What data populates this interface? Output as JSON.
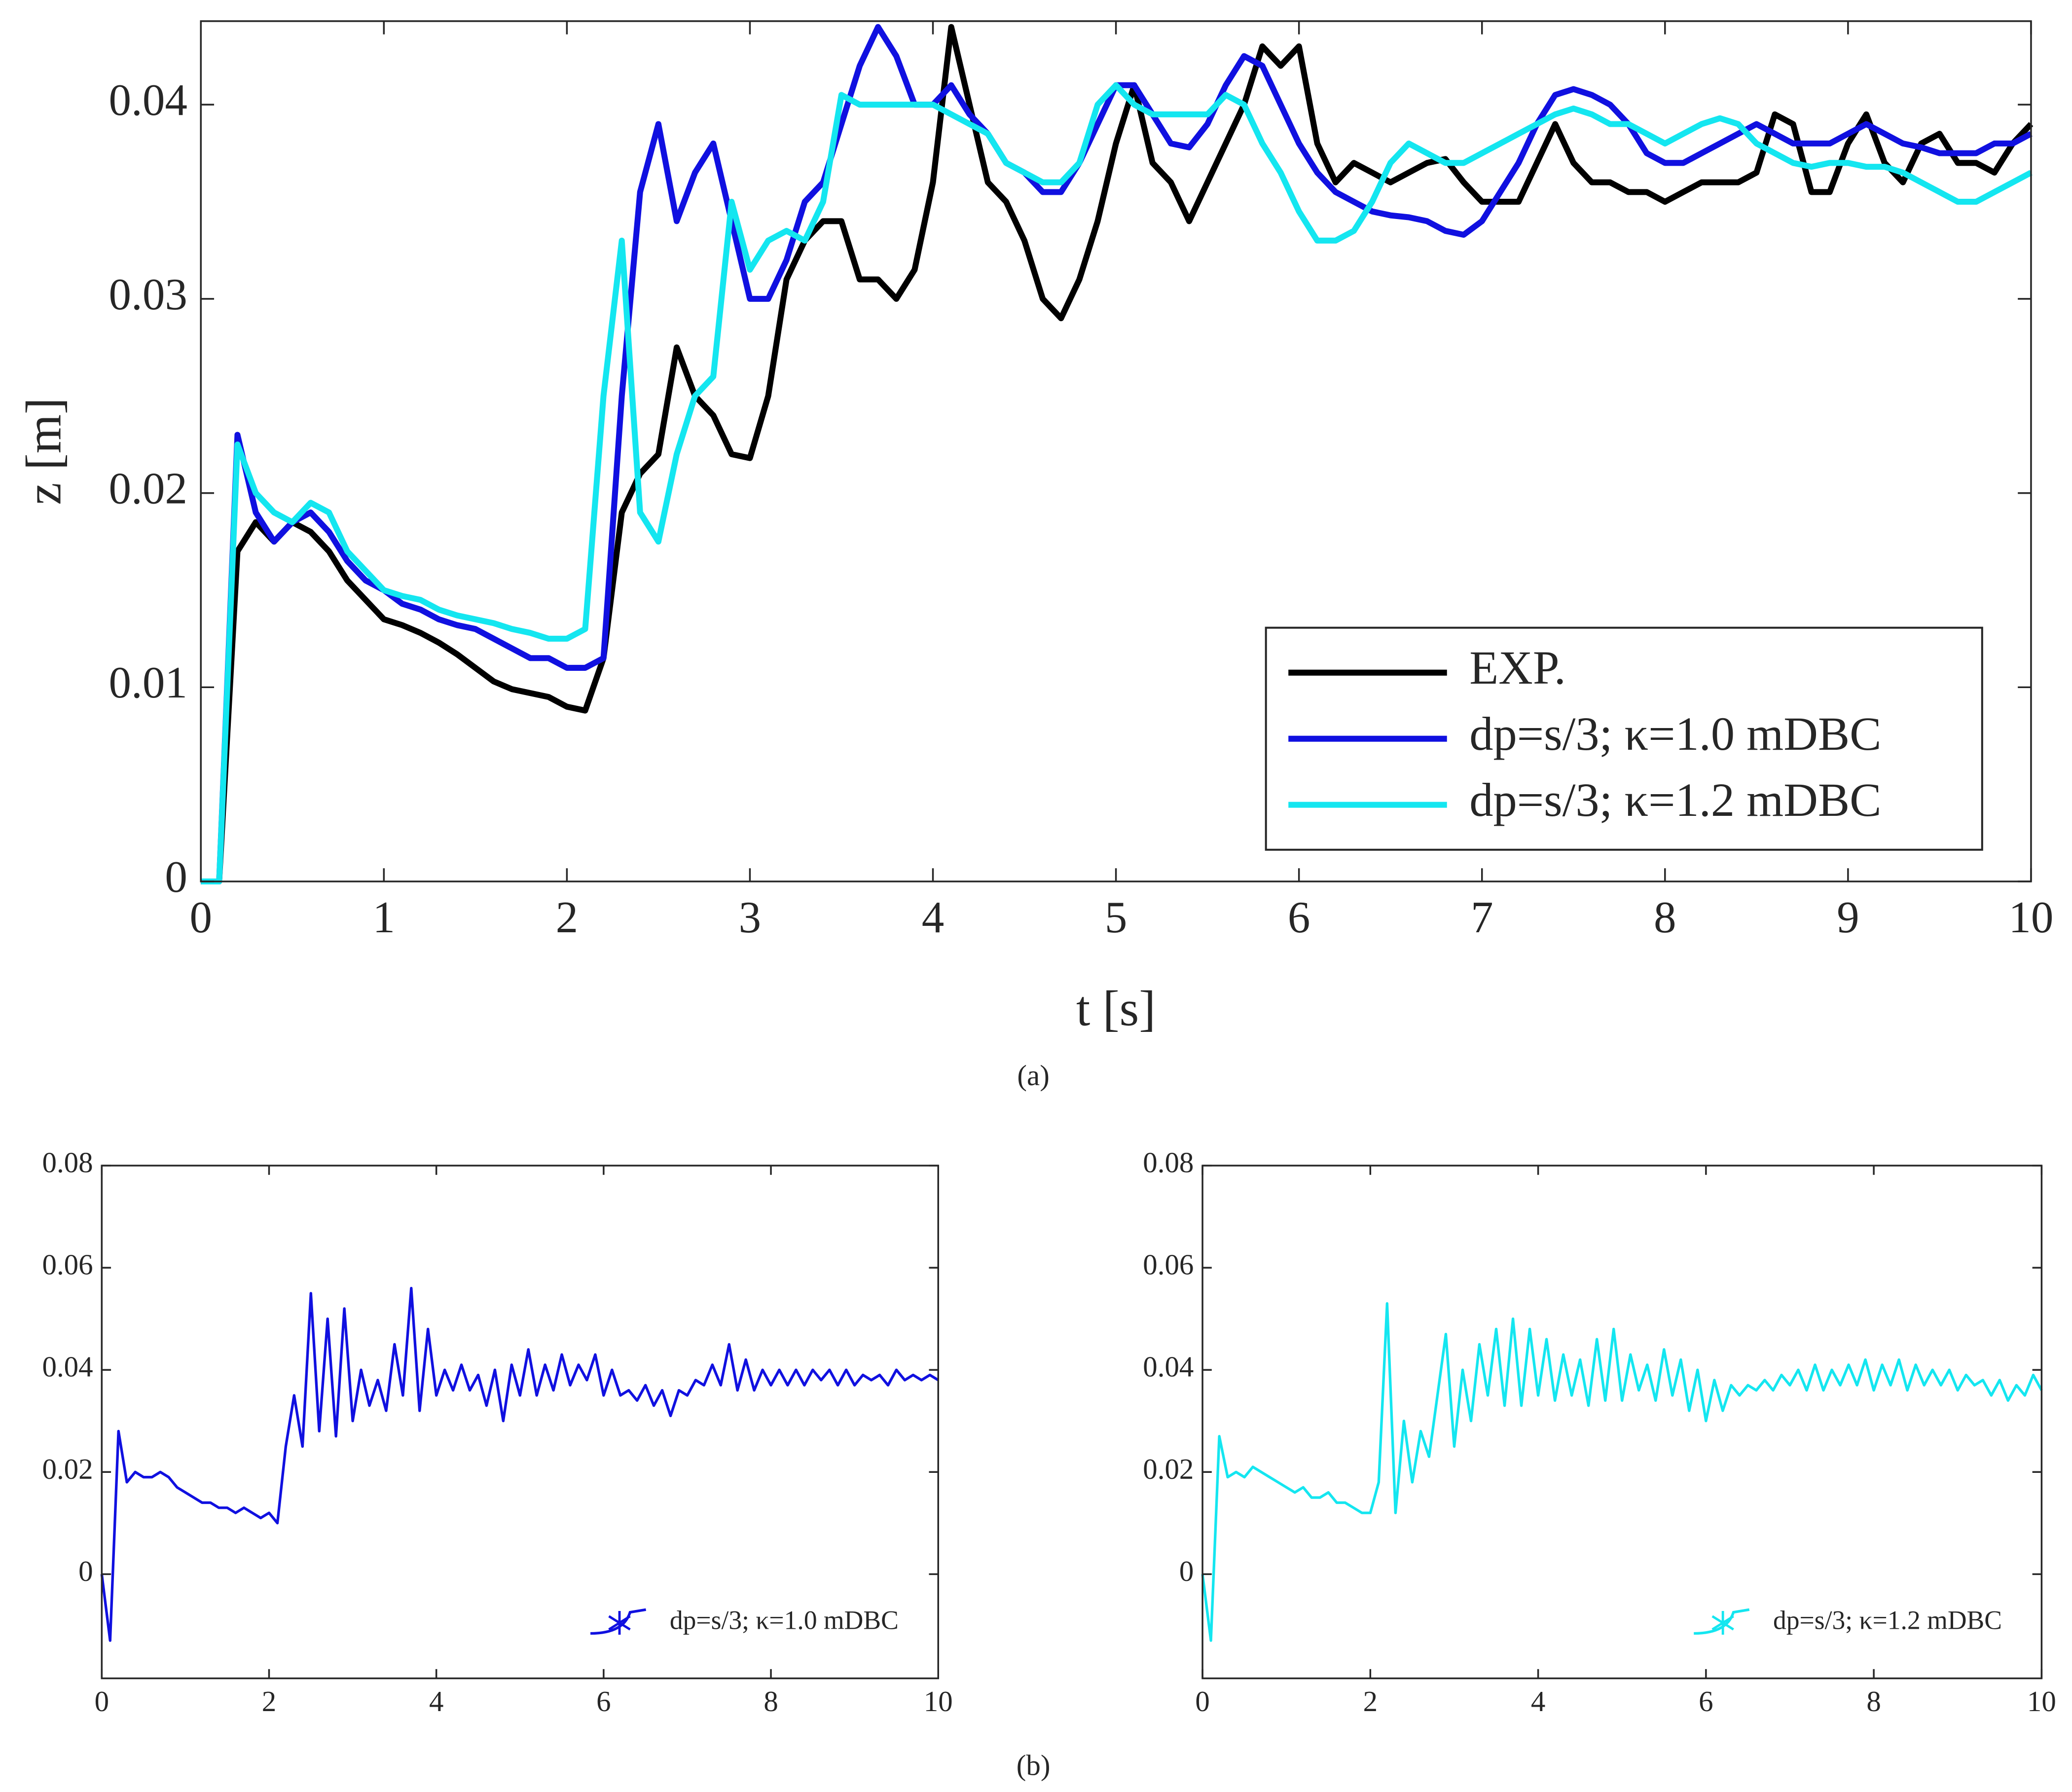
{
  "captions": [
    "(a)",
    "(b)"
  ],
  "chart_data": [
    {
      "type": "line",
      "xlabel": "t [s]",
      "ylabel": "z [m]",
      "xlim": [
        0,
        10
      ],
      "ylim": [
        0,
        0.0443
      ],
      "xticks": [
        0,
        1,
        2,
        3,
        4,
        5,
        6,
        7,
        8,
        9,
        10
      ],
      "yticks": [
        0,
        0.01,
        0.02,
        0.03,
        0.04
      ],
      "legend": "lower right",
      "legend_frame": true,
      "x": [
        0,
        0.1,
        0.2,
        0.3,
        0.4,
        0.5,
        0.6,
        0.7,
        0.8,
        0.9,
        1,
        1.1,
        1.2,
        1.3,
        1.4,
        1.5,
        1.6,
        1.7,
        1.8,
        1.9,
        2,
        2.1,
        2.2,
        2.3,
        2.4,
        2.5,
        2.6,
        2.7,
        2.8,
        2.9,
        3,
        3.1,
        3.2,
        3.3,
        3.4,
        3.5,
        3.6,
        3.7,
        3.8,
        3.9,
        4,
        4.1,
        4.2,
        4.3,
        4.4,
        4.5,
        4.6,
        4.7,
        4.8,
        4.9,
        5,
        5.1,
        5.2,
        5.3,
        5.4,
        5.5,
        5.6,
        5.7,
        5.8,
        5.9,
        6,
        6.1,
        6.2,
        6.3,
        6.4,
        6.5,
        6.6,
        6.7,
        6.8,
        6.9,
        7,
        7.1,
        7.2,
        7.3,
        7.4,
        7.5,
        7.6,
        7.7,
        7.8,
        7.9,
        8,
        8.1,
        8.2,
        8.3,
        8.4,
        8.5,
        8.6,
        8.7,
        8.8,
        8.9,
        9,
        9.1,
        9.2,
        9.3,
        9.4,
        9.5,
        9.6,
        9.7,
        9.8,
        9.9,
        10
      ],
      "series": [
        {
          "name": "EXP.",
          "color": "#000000",
          "values": [
            0,
            0,
            0.017,
            0.0185,
            0.0175,
            0.0185,
            0.018,
            0.017,
            0.0155,
            0.0145,
            0.0135,
            0.0132,
            0.0128,
            0.0123,
            0.0117,
            0.011,
            0.0103,
            0.0099,
            0.0097,
            0.0095,
            0.009,
            0.0088,
            0.0115,
            0.019,
            0.021,
            0.022,
            0.0275,
            0.025,
            0.024,
            0.022,
            0.0218,
            0.025,
            0.031,
            0.033,
            0.034,
            0.034,
            0.031,
            0.031,
            0.03,
            0.0315,
            0.036,
            0.044,
            0.04,
            0.036,
            0.035,
            0.033,
            0.03,
            0.029,
            0.031,
            0.034,
            0.038,
            0.041,
            0.037,
            0.036,
            0.034,
            0.036,
            0.038,
            0.04,
            0.043,
            0.042,
            0.043,
            0.038,
            0.036,
            0.037,
            0.0365,
            0.036,
            0.0365,
            0.037,
            0.0372,
            0.036,
            0.035,
            0.035,
            0.035,
            0.037,
            0.039,
            0.037,
            0.036,
            0.036,
            0.0355,
            0.0355,
            0.035,
            0.0355,
            0.036,
            0.036,
            0.036,
            0.0365,
            0.0395,
            0.039,
            0.0355,
            0.0355,
            0.038,
            0.0395,
            0.037,
            0.036,
            0.038,
            0.0385,
            0.037,
            0.037,
            0.0365,
            0.038,
            0.039
          ]
        },
        {
          "name": "dp=s/3; κ=1.0 mDBC",
          "color": "#1010e0",
          "values": [
            0,
            0,
            0.023,
            0.019,
            0.0175,
            0.0185,
            0.019,
            0.018,
            0.0165,
            0.0155,
            0.015,
            0.0143,
            0.014,
            0.0135,
            0.0132,
            0.013,
            0.0125,
            0.012,
            0.0115,
            0.0115,
            0.011,
            0.011,
            0.0115,
            0.025,
            0.0355,
            0.039,
            0.034,
            0.0365,
            0.038,
            0.034,
            0.03,
            0.03,
            0.032,
            0.035,
            0.036,
            0.039,
            0.042,
            0.044,
            0.0425,
            0.04,
            0.04,
            0.041,
            0.0395,
            0.0385,
            0.037,
            0.0365,
            0.0355,
            0.0355,
            0.037,
            0.039,
            0.041,
            0.041,
            0.0395,
            0.038,
            0.0378,
            0.039,
            0.041,
            0.0425,
            0.042,
            0.04,
            0.038,
            0.0365,
            0.0355,
            0.035,
            0.0345,
            0.0343,
            0.0342,
            0.034,
            0.0335,
            0.0333,
            0.034,
            0.0355,
            0.037,
            0.039,
            0.0405,
            0.0408,
            0.0405,
            0.04,
            0.039,
            0.0375,
            0.037,
            0.037,
            0.0375,
            0.038,
            0.0385,
            0.039,
            0.0385,
            0.038,
            0.038,
            0.038,
            0.0385,
            0.039,
            0.0385,
            0.038,
            0.0378,
            0.0375,
            0.0375,
            0.0375,
            0.038,
            0.038,
            0.0385
          ]
        },
        {
          "name": "dp=s/3; κ=1.2 mDBC",
          "color": "#14e6f0",
          "values": [
            0,
            0,
            0.0225,
            0.02,
            0.019,
            0.0185,
            0.0195,
            0.019,
            0.017,
            0.016,
            0.015,
            0.0147,
            0.0145,
            0.014,
            0.0137,
            0.0135,
            0.0133,
            0.013,
            0.0128,
            0.0125,
            0.0125,
            0.013,
            0.025,
            0.033,
            0.019,
            0.0175,
            0.022,
            0.025,
            0.026,
            0.035,
            0.0315,
            0.033,
            0.0335,
            0.033,
            0.035,
            0.0405,
            0.04,
            0.04,
            0.04,
            0.04,
            0.04,
            0.0395,
            0.039,
            0.0385,
            0.037,
            0.0365,
            0.036,
            0.036,
            0.037,
            0.04,
            0.041,
            0.04,
            0.0395,
            0.0395,
            0.0395,
            0.0395,
            0.0405,
            0.04,
            0.038,
            0.0365,
            0.0345,
            0.033,
            0.033,
            0.0335,
            0.035,
            0.037,
            0.038,
            0.0375,
            0.037,
            0.037,
            0.0375,
            0.038,
            0.0385,
            0.039,
            0.0395,
            0.0398,
            0.0395,
            0.039,
            0.039,
            0.0385,
            0.038,
            0.0385,
            0.039,
            0.0393,
            0.039,
            0.038,
            0.0375,
            0.037,
            0.0368,
            0.037,
            0.037,
            0.0368,
            0.0368,
            0.0365,
            0.036,
            0.0355,
            0.035,
            0.035,
            0.0355,
            0.036,
            0.0365
          ]
        }
      ]
    },
    {
      "type": "line",
      "xlim": [
        0,
        10
      ],
      "ylim": [
        -0.0204,
        0.08
      ],
      "xticks": [
        0,
        2,
        4,
        6,
        8,
        10
      ],
      "yticks": [
        0,
        0.02,
        0.04,
        0.06,
        0.08
      ],
      "legend": "lower right",
      "legend_frame": false,
      "x": [
        0,
        0.1,
        0.2,
        0.3,
        0.4,
        0.5,
        0.6,
        0.7,
        0.8,
        0.9,
        1,
        1.1,
        1.2,
        1.3,
        1.4,
        1.5,
        1.6,
        1.7,
        1.8,
        1.9,
        2,
        2.1,
        2.2,
        2.3,
        2.4,
        2.5,
        2.6,
        2.7,
        2.8,
        2.9,
        3,
        3.1,
        3.2,
        3.3,
        3.4,
        3.5,
        3.6,
        3.7,
        3.8,
        3.9,
        4,
        4.1,
        4.2,
        4.3,
        4.4,
        4.5,
        4.6,
        4.7,
        4.8,
        4.9,
        5,
        5.1,
        5.2,
        5.3,
        5.4,
        5.5,
        5.6,
        5.7,
        5.8,
        5.9,
        6,
        6.1,
        6.2,
        6.3,
        6.4,
        6.5,
        6.6,
        6.7,
        6.8,
        6.9,
        7,
        7.1,
        7.2,
        7.3,
        7.4,
        7.5,
        7.6,
        7.7,
        7.8,
        7.9,
        8,
        8.1,
        8.2,
        8.3,
        8.4,
        8.5,
        8.6,
        8.7,
        8.8,
        8.9,
        9,
        9.1,
        9.2,
        9.3,
        9.4,
        9.5,
        9.6,
        9.7,
        9.8,
        9.9,
        10
      ],
      "series": [
        {
          "name": "dp=s/3; κ=1.0 mDBC",
          "color": "#1010e0",
          "values": [
            0,
            -0.013,
            0.028,
            0.018,
            0.02,
            0.019,
            0.019,
            0.02,
            0.019,
            0.017,
            0.016,
            0.015,
            0.014,
            0.014,
            0.013,
            0.013,
            0.012,
            0.013,
            0.012,
            0.011,
            0.012,
            0.01,
            0.025,
            0.035,
            0.025,
            0.055,
            0.028,
            0.05,
            0.027,
            0.052,
            0.03,
            0.04,
            0.033,
            0.038,
            0.032,
            0.045,
            0.035,
            0.056,
            0.032,
            0.048,
            0.035,
            0.04,
            0.036,
            0.041,
            0.036,
            0.039,
            0.033,
            0.04,
            0.03,
            0.041,
            0.035,
            0.044,
            0.035,
            0.041,
            0.036,
            0.043,
            0.037,
            0.041,
            0.038,
            0.043,
            0.035,
            0.04,
            0.035,
            0.036,
            0.034,
            0.037,
            0.033,
            0.036,
            0.031,
            0.036,
            0.035,
            0.038,
            0.037,
            0.041,
            0.037,
            0.045,
            0.036,
            0.042,
            0.036,
            0.04,
            0.037,
            0.04,
            0.037,
            0.04,
            0.037,
            0.04,
            0.038,
            0.04,
            0.037,
            0.04,
            0.037,
            0.039,
            0.038,
            0.039,
            0.037,
            0.04,
            0.038,
            0.039,
            0.038,
            0.039,
            0.038
          ]
        }
      ]
    },
    {
      "type": "line",
      "xlim": [
        0,
        10
      ],
      "ylim": [
        -0.0204,
        0.08
      ],
      "xticks": [
        0,
        2,
        4,
        6,
        8,
        10
      ],
      "yticks": [
        0,
        0.02,
        0.04,
        0.06,
        0.08
      ],
      "legend": "lower right",
      "legend_frame": false,
      "x": [
        0,
        0.1,
        0.2,
        0.3,
        0.4,
        0.5,
        0.6,
        0.7,
        0.8,
        0.9,
        1,
        1.1,
        1.2,
        1.3,
        1.4,
        1.5,
        1.6,
        1.7,
        1.8,
        1.9,
        2,
        2.1,
        2.2,
        2.3,
        2.4,
        2.5,
        2.6,
        2.7,
        2.8,
        2.9,
        3,
        3.1,
        3.2,
        3.3,
        3.4,
        3.5,
        3.6,
        3.7,
        3.8,
        3.9,
        4,
        4.1,
        4.2,
        4.3,
        4.4,
        4.5,
        4.6,
        4.7,
        4.8,
        4.9,
        5,
        5.1,
        5.2,
        5.3,
        5.4,
        5.5,
        5.6,
        5.7,
        5.8,
        5.9,
        6,
        6.1,
        6.2,
        6.3,
        6.4,
        6.5,
        6.6,
        6.7,
        6.8,
        6.9,
        7,
        7.1,
        7.2,
        7.3,
        7.4,
        7.5,
        7.6,
        7.7,
        7.8,
        7.9,
        8,
        8.1,
        8.2,
        8.3,
        8.4,
        8.5,
        8.6,
        8.7,
        8.8,
        8.9,
        9,
        9.1,
        9.2,
        9.3,
        9.4,
        9.5,
        9.6,
        9.7,
        9.8,
        9.9,
        10
      ],
      "series": [
        {
          "name": "dp=s/3; κ=1.2 mDBC",
          "color": "#14e6f0",
          "values": [
            0,
            -0.013,
            0.027,
            0.019,
            0.02,
            0.019,
            0.021,
            0.02,
            0.019,
            0.018,
            0.017,
            0.016,
            0.017,
            0.015,
            0.015,
            0.016,
            0.014,
            0.014,
            0.013,
            0.012,
            0.012,
            0.018,
            0.053,
            0.012,
            0.03,
            0.018,
            0.028,
            0.023,
            0.035,
            0.047,
            0.025,
            0.04,
            0.03,
            0.045,
            0.035,
            0.048,
            0.033,
            0.05,
            0.033,
            0.048,
            0.035,
            0.046,
            0.034,
            0.043,
            0.035,
            0.042,
            0.033,
            0.046,
            0.034,
            0.048,
            0.034,
            0.043,
            0.036,
            0.041,
            0.034,
            0.044,
            0.035,
            0.042,
            0.032,
            0.04,
            0.03,
            0.038,
            0.032,
            0.037,
            0.035,
            0.037,
            0.036,
            0.038,
            0.036,
            0.039,
            0.037,
            0.04,
            0.036,
            0.041,
            0.036,
            0.04,
            0.037,
            0.041,
            0.037,
            0.042,
            0.036,
            0.041,
            0.037,
            0.042,
            0.036,
            0.041,
            0.037,
            0.04,
            0.037,
            0.04,
            0.036,
            0.039,
            0.037,
            0.038,
            0.035,
            0.038,
            0.034,
            0.037,
            0.035,
            0.039,
            0.036
          ]
        }
      ]
    }
  ]
}
